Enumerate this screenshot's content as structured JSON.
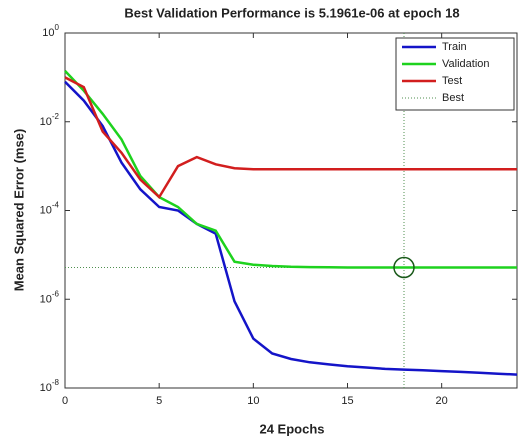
{
  "chart_data": {
    "type": "line",
    "title": "Best Validation Performance is 5.1961e-06 at epoch 18",
    "xlabel": "24 Epochs",
    "ylabel": "Mean Squared Error  (mse)",
    "x": [
      0,
      1,
      2,
      3,
      4,
      5,
      6,
      7,
      8,
      9,
      10,
      11,
      12,
      13,
      14,
      15,
      16,
      17,
      18,
      19,
      20,
      21,
      22,
      23,
      24
    ],
    "series": [
      {
        "name": "Train",
        "color": "#1414c8",
        "values": [
          0.08,
          0.03,
          0.008,
          0.0012,
          0.0003,
          0.00012,
          0.0001,
          5e-05,
          3e-05,
          9e-07,
          1.3e-07,
          6e-08,
          4.5e-08,
          3.8e-08,
          3.4e-08,
          3.1e-08,
          2.9e-08,
          2.7e-08,
          2.6e-08,
          2.5e-08,
          2.4e-08,
          2.3e-08,
          2.2e-08,
          2.1e-08,
          2e-08
        ]
      },
      {
        "name": "Validation",
        "color": "#1ed21e",
        "values": [
          0.14,
          0.05,
          0.015,
          0.004,
          0.0006,
          0.0002,
          0.00012,
          5e-05,
          3.5e-05,
          7e-06,
          6e-06,
          5.6e-06,
          5.4e-06,
          5.3e-06,
          5.25e-06,
          5.2e-06,
          5.2e-06,
          5.2e-06,
          5.1961e-06,
          5.2e-06,
          5.2e-06,
          5.2e-06,
          5.2e-06,
          5.2e-06,
          5.2e-06
        ]
      },
      {
        "name": "Test",
        "color": "#d21e1e",
        "values": [
          0.1,
          0.06,
          0.006,
          0.002,
          0.0005,
          0.0002,
          0.001,
          0.0016,
          0.0011,
          0.0009,
          0.00085,
          0.00085,
          0.00085,
          0.00085,
          0.00085,
          0.00085,
          0.00085,
          0.00085,
          0.00085,
          0.00085,
          0.00085,
          0.00085,
          0.00085,
          0.00085,
          0.00085
        ]
      }
    ],
    "best": {
      "name": "Best",
      "x": 18,
      "value": 5.1961e-06,
      "color": "#4f8f4f"
    },
    "xlim": [
      0,
      24
    ],
    "xticks": [
      0,
      5,
      10,
      15,
      20
    ],
    "ylim": [
      1e-08,
      1
    ],
    "log_y": true,
    "yticks": [
      {
        "value": 1,
        "label": "10^0"
      },
      {
        "value": 0.01,
        "label": "10^-2"
      },
      {
        "value": 0.0001,
        "label": "10^-4"
      },
      {
        "value": 1e-06,
        "label": "10^-6"
      },
      {
        "value": 1e-08,
        "label": "10^-8"
      }
    ],
    "legend": "upper right"
  }
}
